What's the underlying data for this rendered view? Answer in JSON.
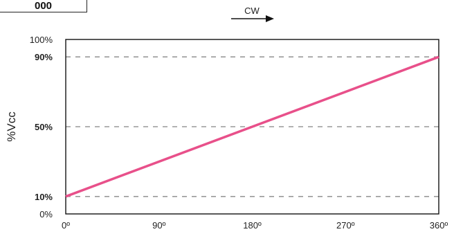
{
  "badge": {
    "code": "000"
  },
  "direction": {
    "label": "CW",
    "arrow_icon": "arrow-right-icon"
  },
  "chart_data": {
    "type": "line",
    "title": "",
    "xlabel": "",
    "ylabel": "%Vcc",
    "xlim": [
      0,
      360
    ],
    "ylim": [
      0,
      100
    ],
    "x_ticks": [
      {
        "value": 0,
        "label": "0º"
      },
      {
        "value": 90,
        "label": "90º"
      },
      {
        "value": 180,
        "label": "180º"
      },
      {
        "value": 270,
        "label": "270º"
      },
      {
        "value": 360,
        "label": "360º"
      }
    ],
    "y_ticks": [
      {
        "value": 100,
        "label": "100%",
        "bold": false
      },
      {
        "value": 90,
        "label": "90%",
        "bold": true
      },
      {
        "value": 50,
        "label": "50%",
        "bold": true
      },
      {
        "value": 10,
        "label": "10%",
        "bold": true
      },
      {
        "value": 0,
        "label": "0%",
        "bold": false
      }
    ],
    "reference_lines": [
      90,
      50,
      10
    ],
    "series": [
      {
        "x": [
          0,
          360
        ],
        "y": [
          10,
          90
        ],
        "color": "#e8508a"
      }
    ],
    "grid": false,
    "reference_line_color": "#999999"
  }
}
